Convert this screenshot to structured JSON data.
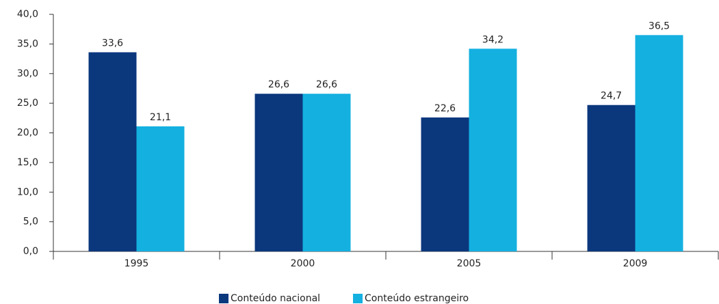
{
  "chart_data": {
    "type": "bar",
    "categories": [
      "1995",
      "2000",
      "2005",
      "2009"
    ],
    "series": [
      {
        "name": "Conteúdo nacional",
        "color": "#0b377d",
        "values": [
          33.6,
          26.6,
          22.6,
          24.7
        ],
        "value_labels": [
          "33,6",
          "26,6",
          "22,6",
          "24,7"
        ]
      },
      {
        "name": "Conteúdo estrangeiro",
        "color": "#14b0e0",
        "values": [
          21.1,
          26.6,
          34.2,
          36.5
        ],
        "value_labels": [
          "21,1",
          "26,6",
          "34,2",
          "36,5"
        ]
      }
    ],
    "ylim": [
      0,
      40
    ],
    "yticks": [
      {
        "value": 0,
        "label": "0,0"
      },
      {
        "value": 5,
        "label": "5,0"
      },
      {
        "value": 10,
        "label": "10,0"
      },
      {
        "value": 15,
        "label": "15,0"
      },
      {
        "value": 20,
        "label": "20,0"
      },
      {
        "value": 25,
        "label": "25,0"
      },
      {
        "value": 30,
        "label": "30,0"
      },
      {
        "value": 35,
        "label": "35,0"
      },
      {
        "value": 40,
        "label": "40,0"
      }
    ],
    "grid": false,
    "legend": "bottom"
  }
}
